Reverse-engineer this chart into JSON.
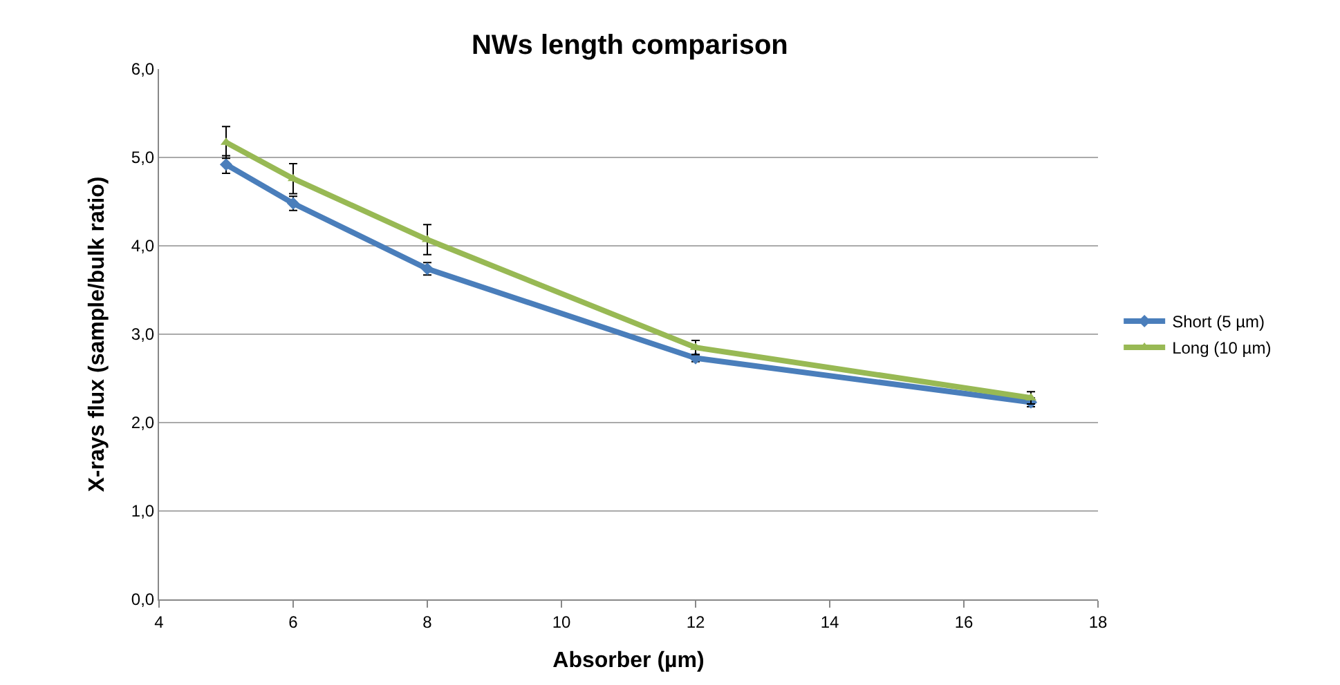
{
  "chart_data": {
    "type": "line",
    "title": "NWs length comparison",
    "xlabel": "Absorber (µm)",
    "ylabel": "X-rays flux (sample/bulk ratio)",
    "x": [
      5,
      6,
      8,
      12,
      17
    ],
    "series": [
      {
        "name": "Short (5 µm)",
        "color": "#4a7ebb",
        "marker": "diamond",
        "values": [
          4.92,
          4.48,
          3.74,
          2.73,
          2.23
        ],
        "errors": [
          0.1,
          0.08,
          0.07,
          0.04,
          0.05
        ]
      },
      {
        "name": "Long (10 µm)",
        "color": "#98b954",
        "marker": "triangle",
        "values": [
          5.17,
          4.76,
          4.07,
          2.85,
          2.28
        ],
        "errors": [
          0.18,
          0.17,
          0.17,
          0.08,
          0.07
        ]
      }
    ],
    "xlim": [
      4,
      18
    ],
    "xticks": [
      4,
      6,
      8,
      10,
      12,
      14,
      16,
      18
    ],
    "ylim": [
      0,
      6
    ],
    "yticks": [
      {
        "value": 0,
        "label": "0,0"
      },
      {
        "value": 1,
        "label": "1,0"
      },
      {
        "value": 2,
        "label": "2,0"
      },
      {
        "value": 3,
        "label": "3,0"
      },
      {
        "value": 4,
        "label": "4,0"
      },
      {
        "value": 5,
        "label": "5,0"
      },
      {
        "value": 6,
        "label": "6,0"
      }
    ],
    "grid": "y",
    "legend": "right",
    "line_style": "solid"
  }
}
